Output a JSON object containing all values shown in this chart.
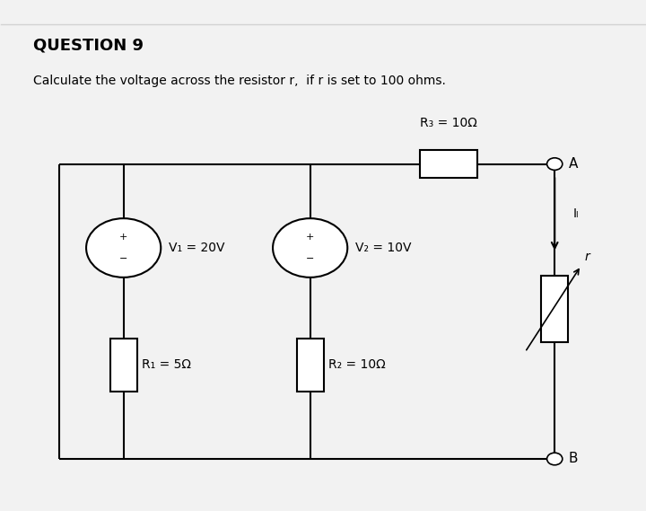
{
  "title": "QUESTION 9",
  "subtitle": "Calculate the voltage across the resistor r,  if r is set to 100 ohms.",
  "background_color": "#f2f2f2",
  "v1_label": "V₁ = 20V",
  "v2_label": "V₂ = 10V",
  "r1_label": "R₁ = 5Ω",
  "r2_label": "R₂ = 10Ω",
  "r3_label": "R₃ = 10Ω",
  "r_label": "r",
  "il_label": "Iₗ"
}
